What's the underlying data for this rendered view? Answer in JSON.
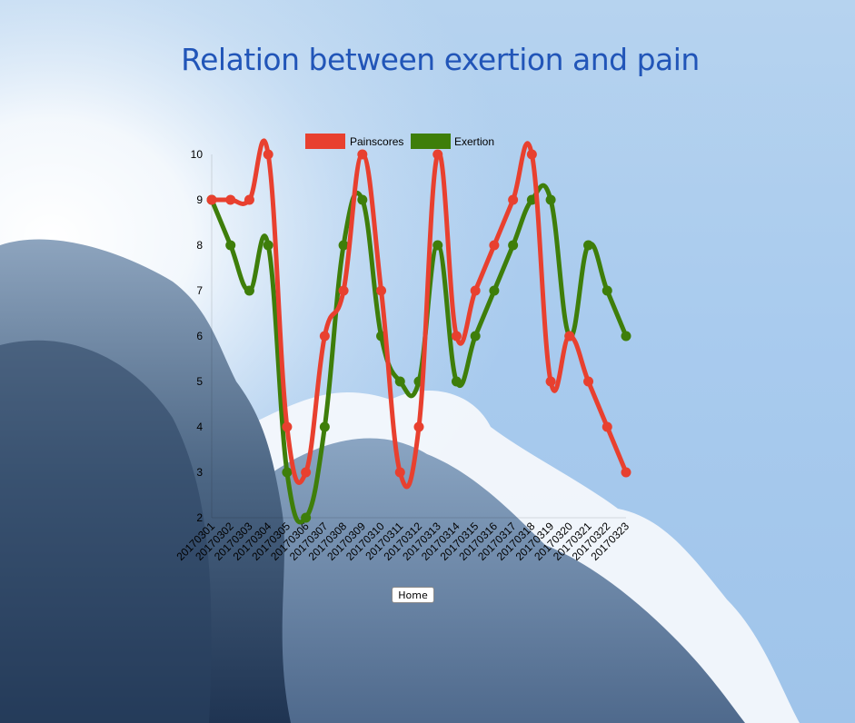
{
  "page": {
    "title": "Relation between exertion and pain",
    "home_button_label": "Home"
  },
  "colors": {
    "title": "#2155b8",
    "painscores": "#e8402f",
    "exertion": "#3e7e0a"
  },
  "chart_data": {
    "type": "line",
    "title": "",
    "xlabel": "",
    "ylabel": "",
    "ylim": [
      2,
      10
    ],
    "yticks": [
      2,
      3,
      4,
      5,
      6,
      7,
      8,
      9,
      10
    ],
    "legend": "top",
    "grid": false,
    "curve": "smooth",
    "categories": [
      "20170301",
      "20170302",
      "20170303",
      "20170304",
      "20170305",
      "20170306",
      "20170307",
      "20170308",
      "20170309",
      "20170310",
      "20170311",
      "20170312",
      "20170313",
      "20170314",
      "20170315",
      "20170316",
      "20170317",
      "20170318",
      "20170319",
      "20170320",
      "20170321",
      "20170322",
      "20170323"
    ],
    "series": [
      {
        "name": "Painscores",
        "color": "#e8402f",
        "values": [
          9,
          9,
          9,
          10,
          4,
          3,
          6,
          7,
          10,
          7,
          3,
          4,
          10,
          6,
          7,
          8,
          9,
          10,
          5,
          6,
          5,
          4,
          3
        ]
      },
      {
        "name": "Exertion",
        "color": "#3e7e0a",
        "values": [
          9,
          8,
          7,
          8,
          3,
          2,
          4,
          8,
          9,
          6,
          5,
          5,
          8,
          5,
          6,
          7,
          8,
          9,
          9,
          6,
          8,
          7,
          6
        ]
      }
    ]
  }
}
